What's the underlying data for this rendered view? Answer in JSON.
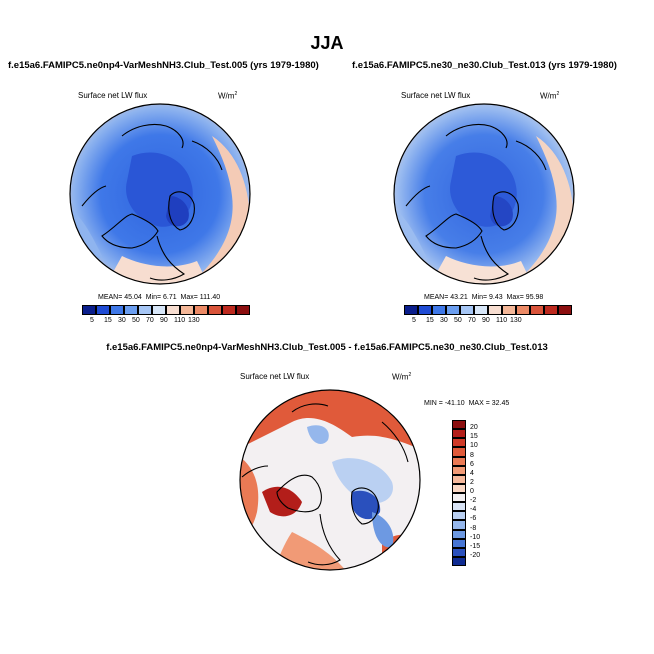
{
  "figure": {
    "title": "JJA"
  },
  "chart_data": [
    {
      "type": "heatmap",
      "panel": "top-left",
      "title": "f.e15a6.FAMIPC5.ne0np4-VarMeshNH3.Club_Test.005 (yrs 1979-1980)",
      "variable": "Surface net LW flux",
      "units": "W/m",
      "units_exp": "2",
      "stats": {
        "mean_label": "MEAN=",
        "mean": "45.04",
        "min_label": "Min=",
        "min": "6.71",
        "max_label": "Max=",
        "max": "111.40"
      },
      "colorbar_ticks": [
        "5",
        "15",
        "30",
        "50",
        "70",
        "90",
        "110",
        "130"
      ],
      "colorbar_colors": [
        "#0a1e8c",
        "#1f4bd4",
        "#3f78e8",
        "#6b9ef0",
        "#a6c6f5",
        "#d7e6f8",
        "#f7ddd0",
        "#f4b798",
        "#ec8a66",
        "#d9543a",
        "#bd2a1f",
        "#8c0f10"
      ]
    },
    {
      "type": "heatmap",
      "panel": "top-right",
      "title": "f.e15a6.FAMIPC5.ne30_ne30.Club_Test.013 (yrs 1979-1980)",
      "variable": "Surface net LW flux",
      "units": "W/m",
      "units_exp": "2",
      "stats": {
        "mean_label": "MEAN=",
        "mean": "43.21",
        "min_label": "Min=",
        "min": "9.43",
        "max_label": "Max=",
        "max": "95.98"
      },
      "colorbar_ticks": [
        "5",
        "15",
        "30",
        "50",
        "70",
        "90",
        "110",
        "130"
      ],
      "colorbar_colors": [
        "#0a1e8c",
        "#1f4bd4",
        "#3f78e8",
        "#6b9ef0",
        "#a6c6f5",
        "#d7e6f8",
        "#f7ddd0",
        "#f4b798",
        "#ec8a66",
        "#d9543a",
        "#bd2a1f",
        "#8c0f10"
      ]
    },
    {
      "type": "heatmap",
      "panel": "bottom-difference",
      "title": "f.e15a6.FAMIPC5.ne0np4-VarMeshNH3.Club_Test.005 - f.e15a6.FAMIPC5.ne30_ne30.Club_Test.013",
      "variable": "Surface net LW flux",
      "units": "W/m",
      "units_exp": "2",
      "stats": {
        "min_label": "MIN =",
        "min": "-41.10",
        "max_label": "MAX =",
        "max": "32.45"
      },
      "colorbar_ticks": [
        "20",
        "15",
        "10",
        "8",
        "6",
        "4",
        "2",
        "0",
        "-2",
        "-4",
        "-6",
        "-8",
        "-10",
        "-15",
        "-20"
      ],
      "colorbar_colors": [
        "#8c0f10",
        "#b31e1a",
        "#cf3a28",
        "#e05a3a",
        "#ea7a55",
        "#f19a76",
        "#f6b99c",
        "#fad7c4",
        "#f3f0f2",
        "#d9e4f6",
        "#bad0f2",
        "#95b7ec",
        "#6d99e2",
        "#4675d4",
        "#2a50bd",
        "#0f2b92"
      ]
    }
  ]
}
